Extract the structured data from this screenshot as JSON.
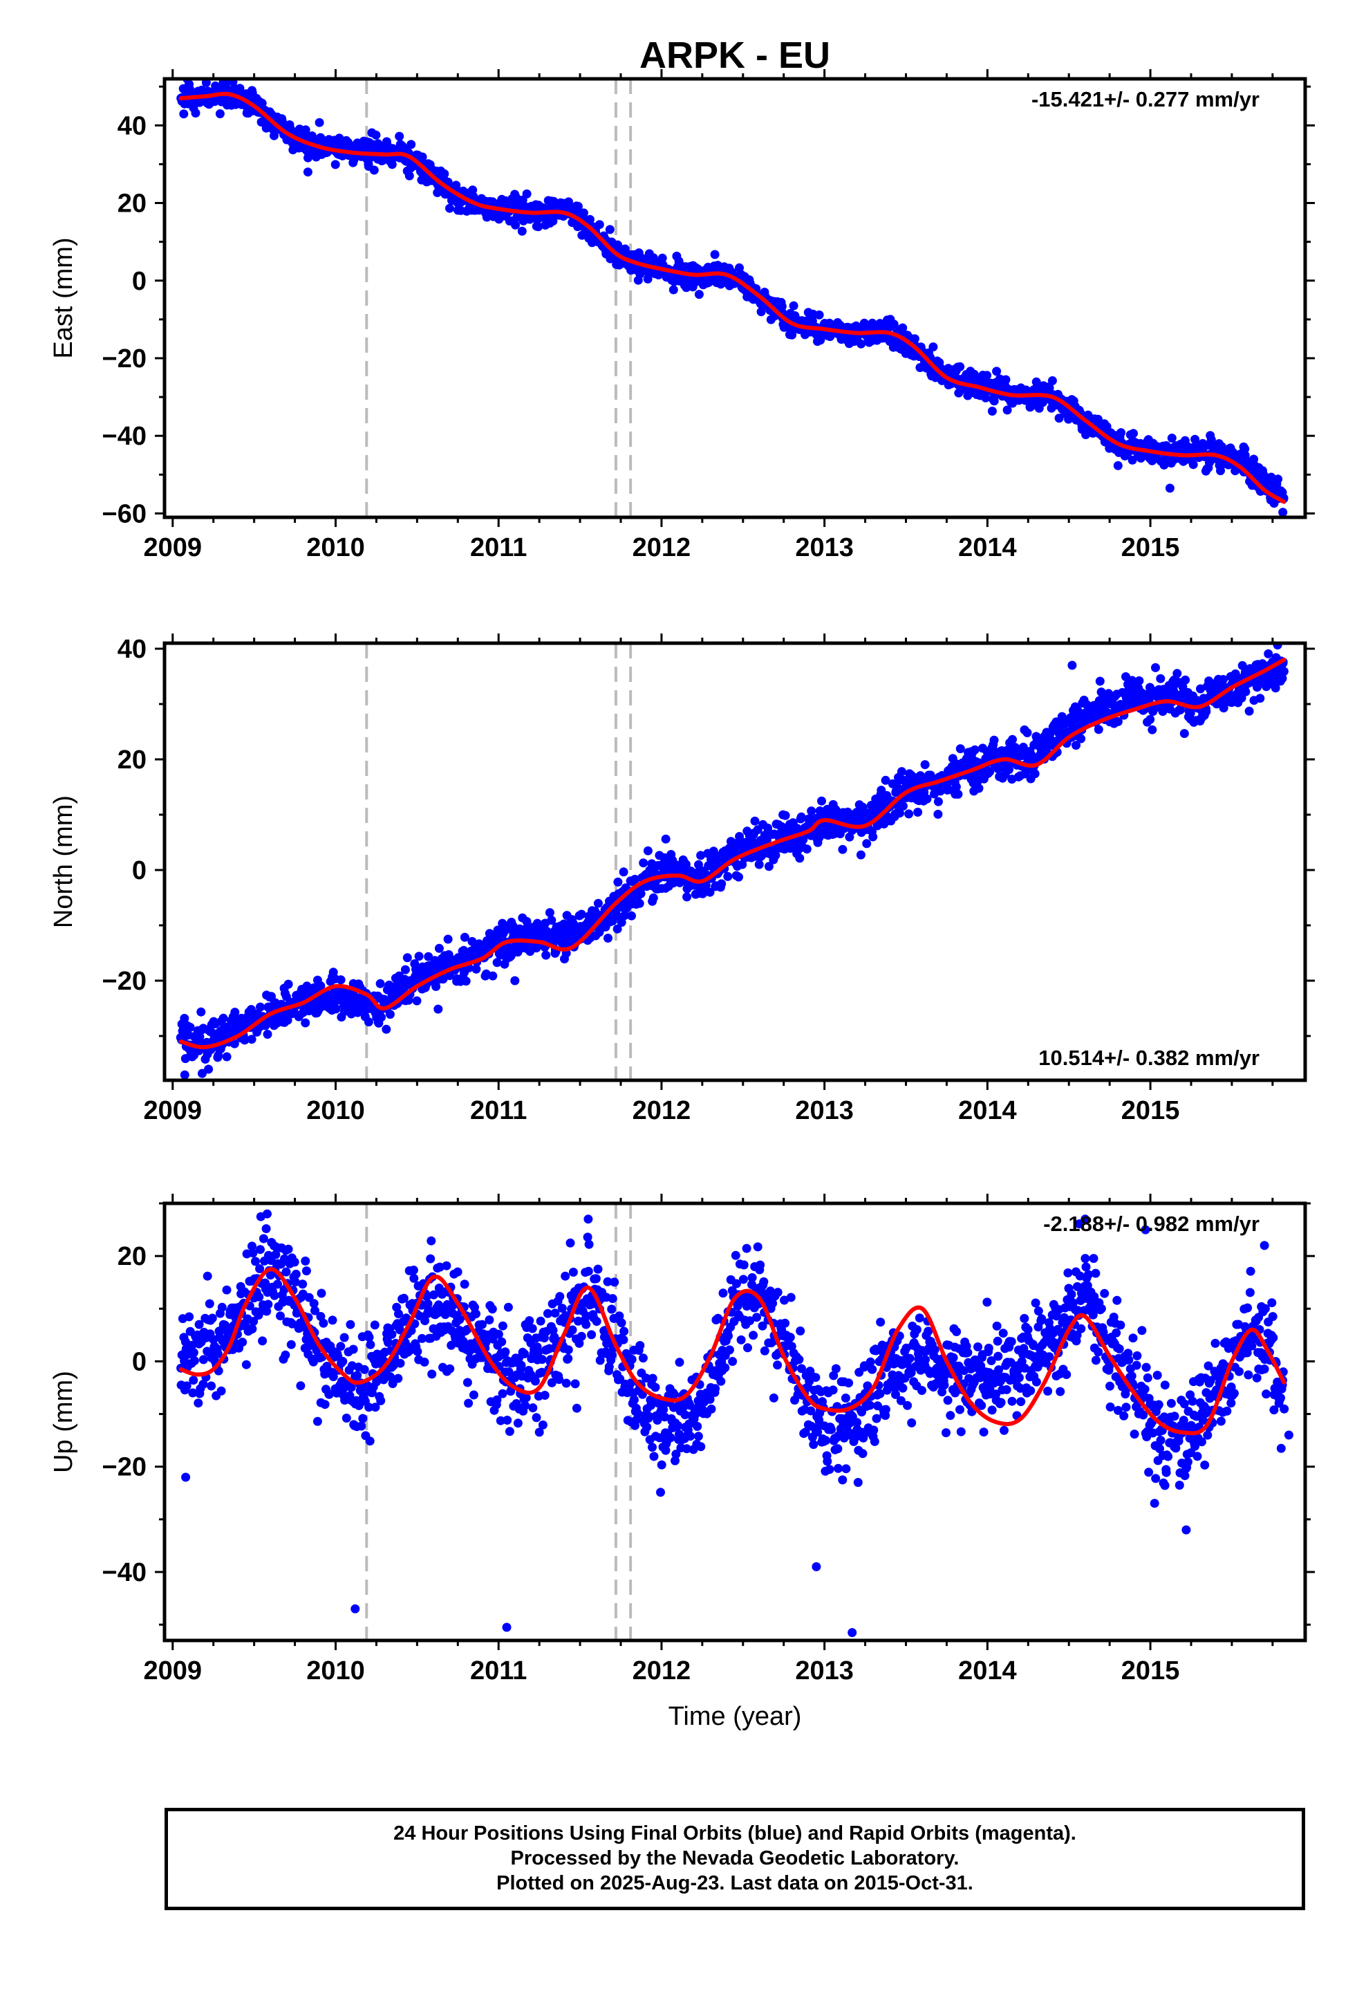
{
  "title": "ARPK - EU",
  "footer": {
    "line1": "24 Hour Positions Using Final Orbits (blue) and Rapid Orbits (magenta).",
    "line2": "Processed by the Nevada Geodetic Laboratory.",
    "line3": "Plotted on 2025-Aug-23. Last data on 2015-Oct-31."
  },
  "colors": {
    "points": "#0000ff",
    "fit": "#ff0000",
    "breaks": "#bbbbbb",
    "axes": "#000000"
  },
  "chart_data": [
    {
      "type": "scatter",
      "panel": "east",
      "ylabel": "East (mm)",
      "xlabel": "",
      "xlim": [
        2008.95,
        2015.95
      ],
      "ylim": [
        -61,
        52
      ],
      "xticks": [
        2009,
        2010,
        2011,
        2012,
        2013,
        2014,
        2015
      ],
      "yticks": [
        -60,
        -40,
        -20,
        0,
        20,
        40
      ],
      "rate": "-15.421+/- 0.277 mm/yr",
      "rate_position": "top-right",
      "breaks": [
        2010.19,
        2011.72,
        2011.81
      ],
      "fit": {
        "x": [
          2009.05,
          2009.2,
          2009.35,
          2009.5,
          2009.7,
          2009.9,
          2010.1,
          2010.3,
          2010.45,
          2010.65,
          2010.85,
          2011.0,
          2011.2,
          2011.4,
          2011.55,
          2011.72,
          2011.85,
          2012.0,
          2012.2,
          2012.4,
          2012.6,
          2012.8,
          2013.0,
          2013.2,
          2013.4,
          2013.55,
          2013.75,
          2013.95,
          2014.15,
          2014.4,
          2014.6,
          2014.8,
          2015.0,
          2015.2,
          2015.4,
          2015.55,
          2015.7,
          2015.82
        ],
        "y": [
          47,
          47.5,
          48,
          45,
          38,
          34.5,
          33,
          32.5,
          32,
          25,
          20,
          18.5,
          17.5,
          17.5,
          14,
          7,
          4.5,
          3,
          1.5,
          1.5,
          -4,
          -11,
          -12.5,
          -13.5,
          -13.5,
          -17,
          -25,
          -27.5,
          -29.5,
          -30,
          -36,
          -42,
          -44,
          -45,
          -45,
          -48,
          -54,
          -57
        ]
      },
      "points_trend": {
        "x": [
          2009.05,
          2009.2,
          2009.35,
          2009.5,
          2009.7,
          2009.9,
          2010.1,
          2010.3,
          2010.45,
          2010.65,
          2010.85,
          2011.0,
          2011.2,
          2011.4,
          2011.55,
          2011.72,
          2011.85,
          2012.0,
          2012.2,
          2012.4,
          2012.6,
          2012.8,
          2013.0,
          2013.2,
          2013.4,
          2013.55,
          2013.75,
          2013.95,
          2014.15,
          2014.4,
          2014.6,
          2014.8,
          2015.0,
          2015.2,
          2015.4,
          2015.55,
          2015.7,
          2015.82
        ],
        "y": [
          47,
          47.5,
          48,
          45,
          38,
          34.5,
          33.5,
          33,
          32,
          25,
          19.5,
          18.5,
          17.5,
          18.5,
          14,
          7,
          4.5,
          3,
          1.5,
          1.5,
          -4,
          -11,
          -12.5,
          -13.5,
          -13.5,
          -17,
          -25,
          -27.5,
          -29.5,
          -30,
          -36,
          -42,
          -44,
          -44.5,
          -44,
          -47,
          -53,
          -55.5
        ],
        "noise_mm": 1.6,
        "outliers": [
          [
            2009.83,
            28
          ],
          [
            2015.12,
            -53.5
          ]
        ]
      }
    },
    {
      "type": "scatter",
      "panel": "north",
      "ylabel": "North (mm)",
      "xlabel": "",
      "xlim": [
        2008.95,
        2015.95
      ],
      "ylim": [
        -38,
        41
      ],
      "xticks": [
        2009,
        2010,
        2011,
        2012,
        2013,
        2014,
        2015
      ],
      "yticks": [
        -20,
        0,
        20,
        40
      ],
      "rate": "10.514+/- 0.382 mm/yr",
      "rate_position": "bottom-right",
      "breaks": [
        2010.19,
        2011.72,
        2011.81
      ],
      "fit": {
        "x": [
          2009.05,
          2009.2,
          2009.4,
          2009.6,
          2009.8,
          2010.0,
          2010.19,
          2010.3,
          2010.5,
          2010.7,
          2010.9,
          2011.05,
          2011.25,
          2011.45,
          2011.72,
          2011.9,
          2012.1,
          2012.25,
          2012.45,
          2012.7,
          2012.9,
          2013.0,
          2013.25,
          2013.5,
          2013.7,
          2013.9,
          2014.1,
          2014.3,
          2014.5,
          2014.7,
          2014.9,
          2015.1,
          2015.3,
          2015.5,
          2015.7,
          2015.82
        ],
        "y": [
          -31,
          -32,
          -30,
          -26,
          -24,
          -21,
          -22.5,
          -25,
          -21,
          -18,
          -16,
          -13,
          -13,
          -14,
          -6,
          -2,
          -1,
          -2,
          2,
          5,
          7,
          9,
          8,
          14,
          16,
          18,
          20,
          19,
          24,
          27,
          29,
          30.5,
          29.5,
          33,
          36,
          38
        ]
      },
      "points_trend": {
        "x": [
          2009.05,
          2009.2,
          2009.4,
          2009.6,
          2009.8,
          2010.0,
          2010.19,
          2010.3,
          2010.5,
          2010.7,
          2010.9,
          2011.05,
          2011.25,
          2011.45,
          2011.72,
          2011.9,
          2012.1,
          2012.25,
          2012.45,
          2012.7,
          2012.9,
          2013.0,
          2013.25,
          2013.5,
          2013.7,
          2013.9,
          2014.1,
          2014.3,
          2014.5,
          2014.7,
          2014.9,
          2015.1,
          2015.3,
          2015.5,
          2015.7,
          2015.82
        ],
        "y": [
          -30,
          -31,
          -29,
          -26,
          -24,
          -22,
          -24,
          -24,
          -20,
          -17,
          -15,
          -12,
          -12,
          -12,
          -7,
          -2,
          0,
          -2,
          3,
          5,
          7,
          9,
          8,
          14,
          16,
          19,
          20,
          21,
          26,
          29,
          31,
          31.5,
          30,
          33,
          35,
          37
        ],
        "noise_mm": 1.8,
        "outliers": [
          [
            2009.22,
            -36
          ],
          [
            2014.52,
            37
          ],
          [
            2011.1,
            -20
          ]
        ]
      }
    },
    {
      "type": "scatter",
      "panel": "up",
      "ylabel": "Up (mm)",
      "xlabel": "Time (year)",
      "xlim": [
        2008.95,
        2015.95
      ],
      "ylim": [
        -53,
        30
      ],
      "xticks": [
        2009,
        2010,
        2011,
        2012,
        2013,
        2014,
        2015
      ],
      "yticks": [
        -40,
        -20,
        0,
        20
      ],
      "rate": "-2.188+/- 0.982 mm/yr",
      "rate_position": "top-right",
      "breaks": [
        2010.19,
        2011.72,
        2011.81
      ],
      "fit": {
        "x": [
          2009.05,
          2009.15,
          2009.25,
          2009.35,
          2009.45,
          2009.6,
          2009.75,
          2009.9,
          2010.05,
          2010.15,
          2010.3,
          2010.45,
          2010.6,
          2010.75,
          2010.95,
          2011.1,
          2011.25,
          2011.4,
          2011.55,
          2011.72,
          2011.85,
          2012.0,
          2012.15,
          2012.3,
          2012.45,
          2012.6,
          2012.75,
          2012.9,
          2013.0,
          2013.15,
          2013.3,
          2013.45,
          2013.6,
          2013.75,
          2013.9,
          2014.05,
          2014.2,
          2014.35,
          2014.5,
          2014.6,
          2014.75,
          2014.9,
          2015.05,
          2015.2,
          2015.35,
          2015.5,
          2015.62,
          2015.72,
          2015.82
        ],
        "y": [
          -1.5,
          -2.5,
          -1.5,
          3,
          11,
          17.5,
          12,
          3,
          -2.5,
          -4,
          -1,
          7,
          16,
          11,
          0,
          -5,
          -5,
          5,
          14,
          3,
          -4,
          -7,
          -6.5,
          1,
          12,
          12,
          1,
          -7,
          -9,
          -9,
          -5,
          6,
          10,
          0,
          -8,
          -11.5,
          -11,
          -4,
          6,
          8.5,
          1,
          -6,
          -11.5,
          -13.5,
          -12,
          0,
          6,
          2,
          -4
        ]
      },
      "points_trend": {
        "x": [
          2009.05,
          2009.15,
          2009.25,
          2009.35,
          2009.45,
          2009.6,
          2009.75,
          2009.9,
          2010.05,
          2010.15,
          2010.3,
          2010.45,
          2010.6,
          2010.75,
          2010.95,
          2011.1,
          2011.25,
          2011.4,
          2011.55,
          2011.72,
          2011.85,
          2012.0,
          2012.15,
          2012.3,
          2012.45,
          2012.6,
          2012.75,
          2012.9,
          2013.0,
          2013.15,
          2013.3,
          2013.45,
          2013.6,
          2013.75,
          2013.9,
          2014.05,
          2014.2,
          2014.35,
          2014.5,
          2014.6,
          2014.75,
          2014.9,
          2015.05,
          2015.2,
          2015.35,
          2015.5,
          2015.62,
          2015.72,
          2015.82
        ],
        "y": [
          2,
          1,
          2,
          5,
          11,
          18,
          12,
          2,
          -5,
          -4,
          -1,
          7,
          11,
          7,
          0,
          -3,
          -1,
          5,
          14,
          4,
          -6,
          -12,
          -10,
          -4,
          8,
          15,
          3,
          -7,
          -12,
          -12,
          -5,
          0,
          0,
          -2,
          -4,
          -3,
          -1,
          2,
          8,
          14,
          3,
          -6,
          -12,
          -16,
          -10,
          0,
          6,
          2,
          -7
        ],
        "noise_mm": 4.8,
        "outliers": [
          [
            2009.08,
            -22
          ],
          [
            2010.12,
            -47
          ],
          [
            2011.05,
            -50.5
          ],
          [
            2012.95,
            -39
          ],
          [
            2013.17,
            -51.5
          ],
          [
            2015.22,
            -32
          ],
          [
            2015.85,
            -14
          ],
          [
            2011.55,
            27
          ],
          [
            2009.58,
            28
          ],
          [
            2014.6,
            27
          ],
          [
            2014.97,
            25
          ],
          [
            2015.7,
            22
          ]
        ]
      }
    }
  ]
}
